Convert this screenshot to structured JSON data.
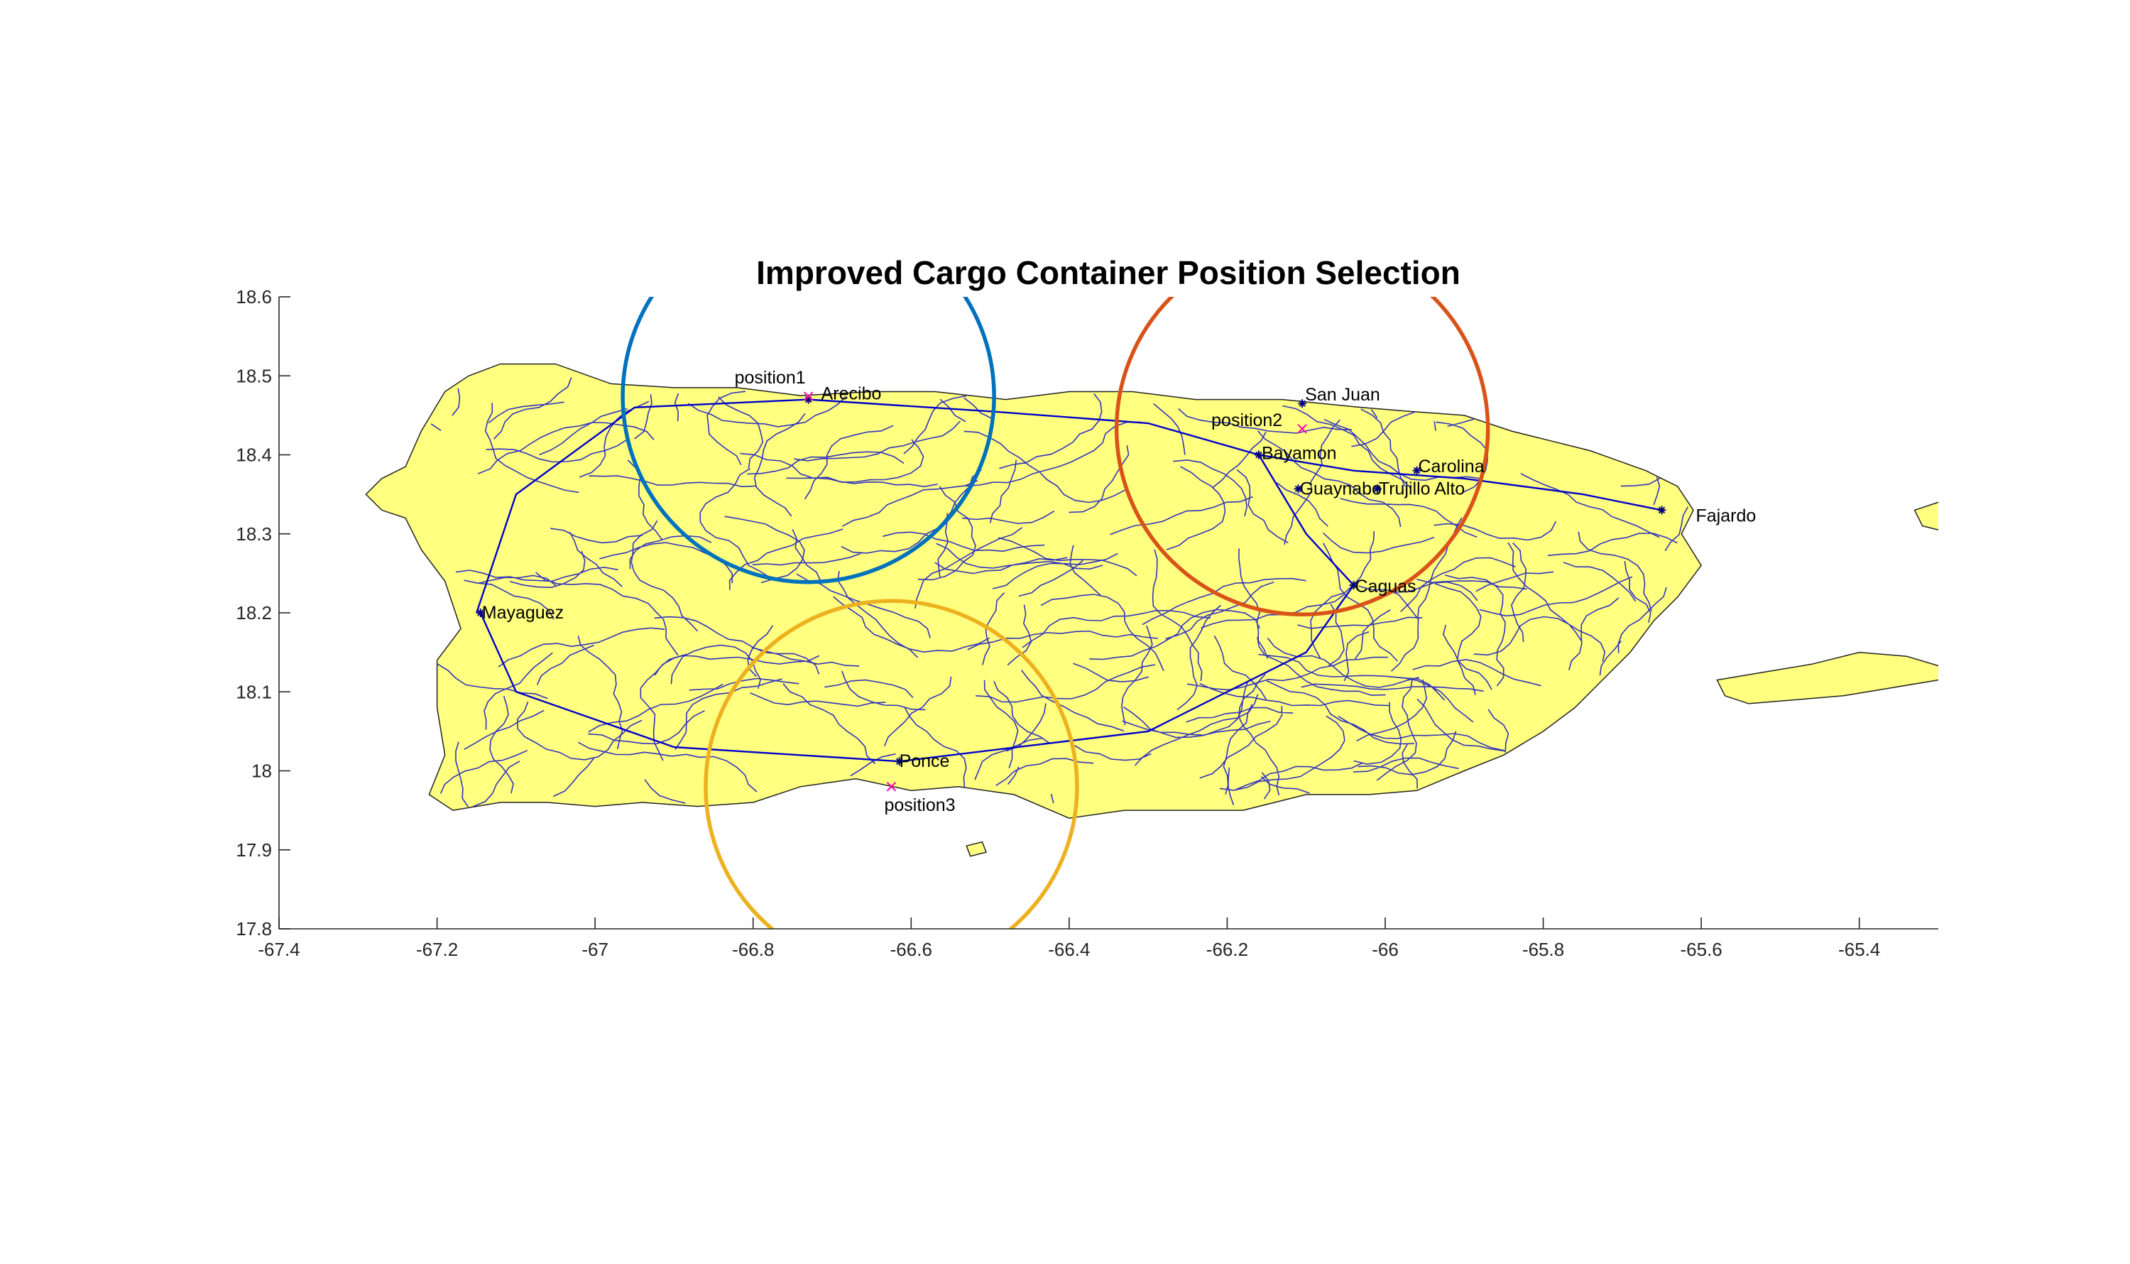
{
  "chart_data": {
    "type": "map",
    "title": "Improved Cargo Container Position Selection",
    "xlim": [
      -67.4,
      -65.3
    ],
    "ylim": [
      17.8,
      18.6
    ],
    "xticks": [
      -67.4,
      -67.2,
      -67,
      -66.8,
      -66.6,
      -66.4,
      -66.2,
      -66,
      -65.8,
      -65.6,
      -65.4
    ],
    "yticks": [
      17.8,
      17.9,
      18,
      18.1,
      18.2,
      18.3,
      18.4,
      18.5,
      18.6
    ],
    "xtick_labels": [
      "-67.4",
      "-67.2",
      "-67",
      "-66.8",
      "-66.6",
      "-66.4",
      "-66.2",
      "-66",
      "-65.8",
      "-65.6",
      "-65.4"
    ],
    "ytick_labels": [
      "17.8",
      "17.9",
      "18",
      "18.1",
      "18.2",
      "18.3",
      "18.4",
      "18.5",
      "18.6"
    ],
    "grid": false,
    "land_color": "#ffff80",
    "road_color": "#0000cc",
    "cities": [
      {
        "name": "Arecibo",
        "lon": -66.73,
        "lat": 18.47
      },
      {
        "name": "San Juan",
        "lon": -66.105,
        "lat": 18.465
      },
      {
        "name": "Bayamon",
        "lon": -66.16,
        "lat": 18.4
      },
      {
        "name": "Guaynabo",
        "lon": -66.11,
        "lat": 18.357
      },
      {
        "name": "Carolina",
        "lon": -65.96,
        "lat": 18.38
      },
      {
        "name": "Trujillo Alto",
        "lon": -66.01,
        "lat": 18.357
      },
      {
        "name": "Fajardo",
        "lon": -65.65,
        "lat": 18.33
      },
      {
        "name": "Caguas",
        "lon": -66.04,
        "lat": 18.235
      },
      {
        "name": "Mayaguez",
        "lon": -67.145,
        "lat": 18.2
      },
      {
        "name": "Ponce",
        "lon": -66.615,
        "lat": 18.012
      }
    ],
    "positions": [
      {
        "name": "position1",
        "lon": -66.73,
        "lat": 18.474,
        "radius_deg": 0.235,
        "color": "#0072bd"
      },
      {
        "name": "position2",
        "lon": -66.105,
        "lat": 18.433,
        "radius_deg": 0.235,
        "color": "#d95319"
      },
      {
        "name": "position3",
        "lon": -66.625,
        "lat": 17.98,
        "radius_deg": 0.235,
        "color": "#edb120"
      }
    ]
  }
}
